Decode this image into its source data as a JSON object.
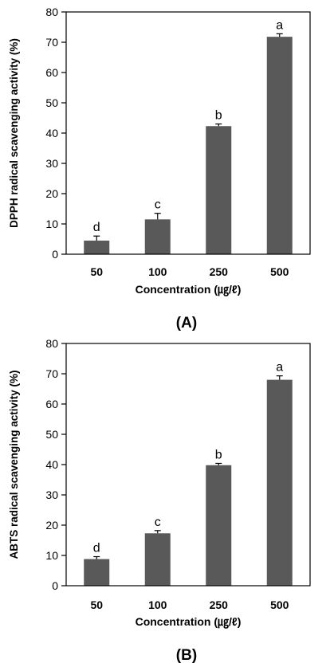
{
  "chart_data": [
    {
      "type": "bar",
      "panel_label": "(A)",
      "categories": [
        "50",
        "100",
        "250",
        "500"
      ],
      "values": [
        4.5,
        11.5,
        42.3,
        71.8
      ],
      "errors": [
        1.5,
        2.0,
        0.7,
        1.0
      ],
      "significance": [
        "d",
        "c",
        "b",
        "a"
      ],
      "xlabel": "Concentration (㎍/ℓ)",
      "ylabel": "DPPH  radical scavenging activity (%)",
      "ylim": [
        0,
        80
      ],
      "yticks": [
        0,
        10,
        20,
        30,
        40,
        50,
        60,
        70,
        80
      ],
      "bar_color": "#595959",
      "grid": false
    },
    {
      "type": "bar",
      "panel_label": "(B)",
      "categories": [
        "50",
        "100",
        "250",
        "500"
      ],
      "values": [
        8.8,
        17.3,
        39.8,
        68.0
      ],
      "errors": [
        0.8,
        0.9,
        0.6,
        1.3
      ],
      "significance": [
        "d",
        "c",
        "b",
        "a"
      ],
      "xlabel": "Concentration (㎍/ℓ)",
      "ylabel": "ABTS radical scavenging activity (%)",
      "ylim": [
        0,
        80
      ],
      "yticks": [
        0,
        10,
        20,
        30,
        40,
        50,
        60,
        70,
        80
      ],
      "bar_color": "#595959",
      "grid": false
    }
  ]
}
